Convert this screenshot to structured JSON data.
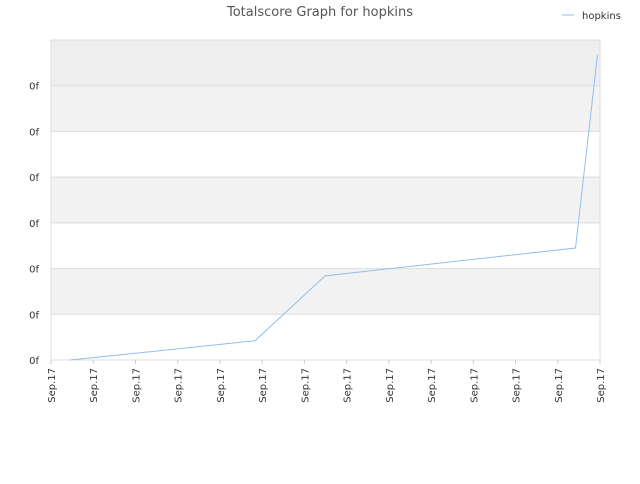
{
  "chart_data": {
    "type": "line",
    "title": "Totalscore Graph for hopkins",
    "x": [
      0.45,
      4.83,
      6.49,
      12.42,
      12.94
    ],
    "series": [
      {
        "name": "hopkins",
        "color": "#90bff0",
        "values": [
          0,
          0.42,
          1.84,
          2.45,
          6.67
        ]
      }
    ],
    "xlim": [
      0,
      13
    ],
    "xticks": [
      {
        "value": 0,
        "label": "Sep.17"
      },
      {
        "value": 1,
        "label": "Sep.17"
      },
      {
        "value": 2,
        "label": "Sep.17"
      },
      {
        "value": 3,
        "label": "Sep.17"
      },
      {
        "value": 4,
        "label": "Sep.17"
      },
      {
        "value": 5,
        "label": "Sep.17"
      },
      {
        "value": 6,
        "label": "Sep.17"
      },
      {
        "value": 7,
        "label": "Sep.17"
      },
      {
        "value": 8,
        "label": "Sep.17"
      },
      {
        "value": 9,
        "label": "Sep.17"
      },
      {
        "value": 10,
        "label": "Sep.17"
      },
      {
        "value": 11,
        "label": "Sep.17"
      },
      {
        "value": 12,
        "label": "Sep.17"
      },
      {
        "value": 13,
        "label": "Sep.17"
      }
    ],
    "ylim": [
      0,
      7
    ],
    "yticks": [
      {
        "value": 0,
        "label": "0f"
      },
      {
        "value": 1,
        "label": "0f"
      },
      {
        "value": 2,
        "label": "0f"
      },
      {
        "value": 3,
        "label": "0f"
      },
      {
        "value": 4,
        "label": "0f"
      },
      {
        "value": 5,
        "label": "0f"
      },
      {
        "value": 6,
        "label": "0f"
      }
    ],
    "grid": true,
    "legend": "top-right"
  }
}
